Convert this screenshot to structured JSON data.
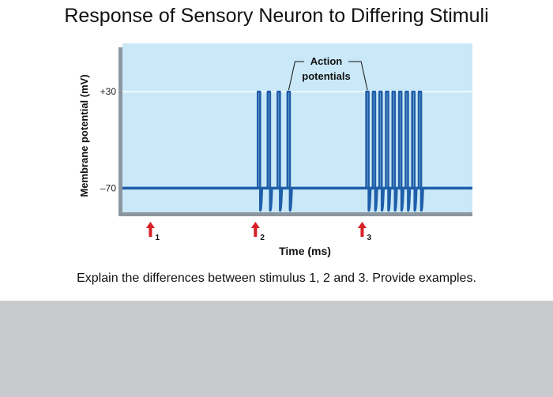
{
  "title": "Response of Sensory Neuron to Differing Stimuli",
  "question": "Explain the differences between stimulus 1, 2 and 3. Provide examples.",
  "colors": {
    "plot_bg": "#c9e8f8",
    "plot_shadow": "#8c969f",
    "trace": "#1f5ea8",
    "arrow": "#d81f26",
    "gridline": "#ffffff"
  },
  "chart_data": {
    "type": "line",
    "title": "Response of Sensory Neuron to Differing Stimuli",
    "xlabel": "Time (ms)",
    "ylabel": "Membrane potential (mV)",
    "resting_potential": -70,
    "peak_potential": 30,
    "yticks": [
      {
        "value": 30,
        "label": "+30"
      },
      {
        "value": -70,
        "label": "–70"
      }
    ],
    "ylim": [
      -95,
      80
    ],
    "xlim": [
      0,
      100
    ],
    "grid": "y-major",
    "annotation": "Action potentials",
    "stimuli": [
      {
        "label": "1",
        "time": 8,
        "action_potentials": 0
      },
      {
        "label": "2",
        "time": 38,
        "action_potentials": 4
      },
      {
        "label": "3",
        "time": 68.5,
        "action_potentials": 9
      }
    ],
    "spike_trains": [
      {
        "stimulus": "2",
        "start": 39,
        "end": 47.5,
        "count": 4
      },
      {
        "stimulus": "3",
        "start": 70,
        "end": 85,
        "count": 9
      }
    ]
  }
}
